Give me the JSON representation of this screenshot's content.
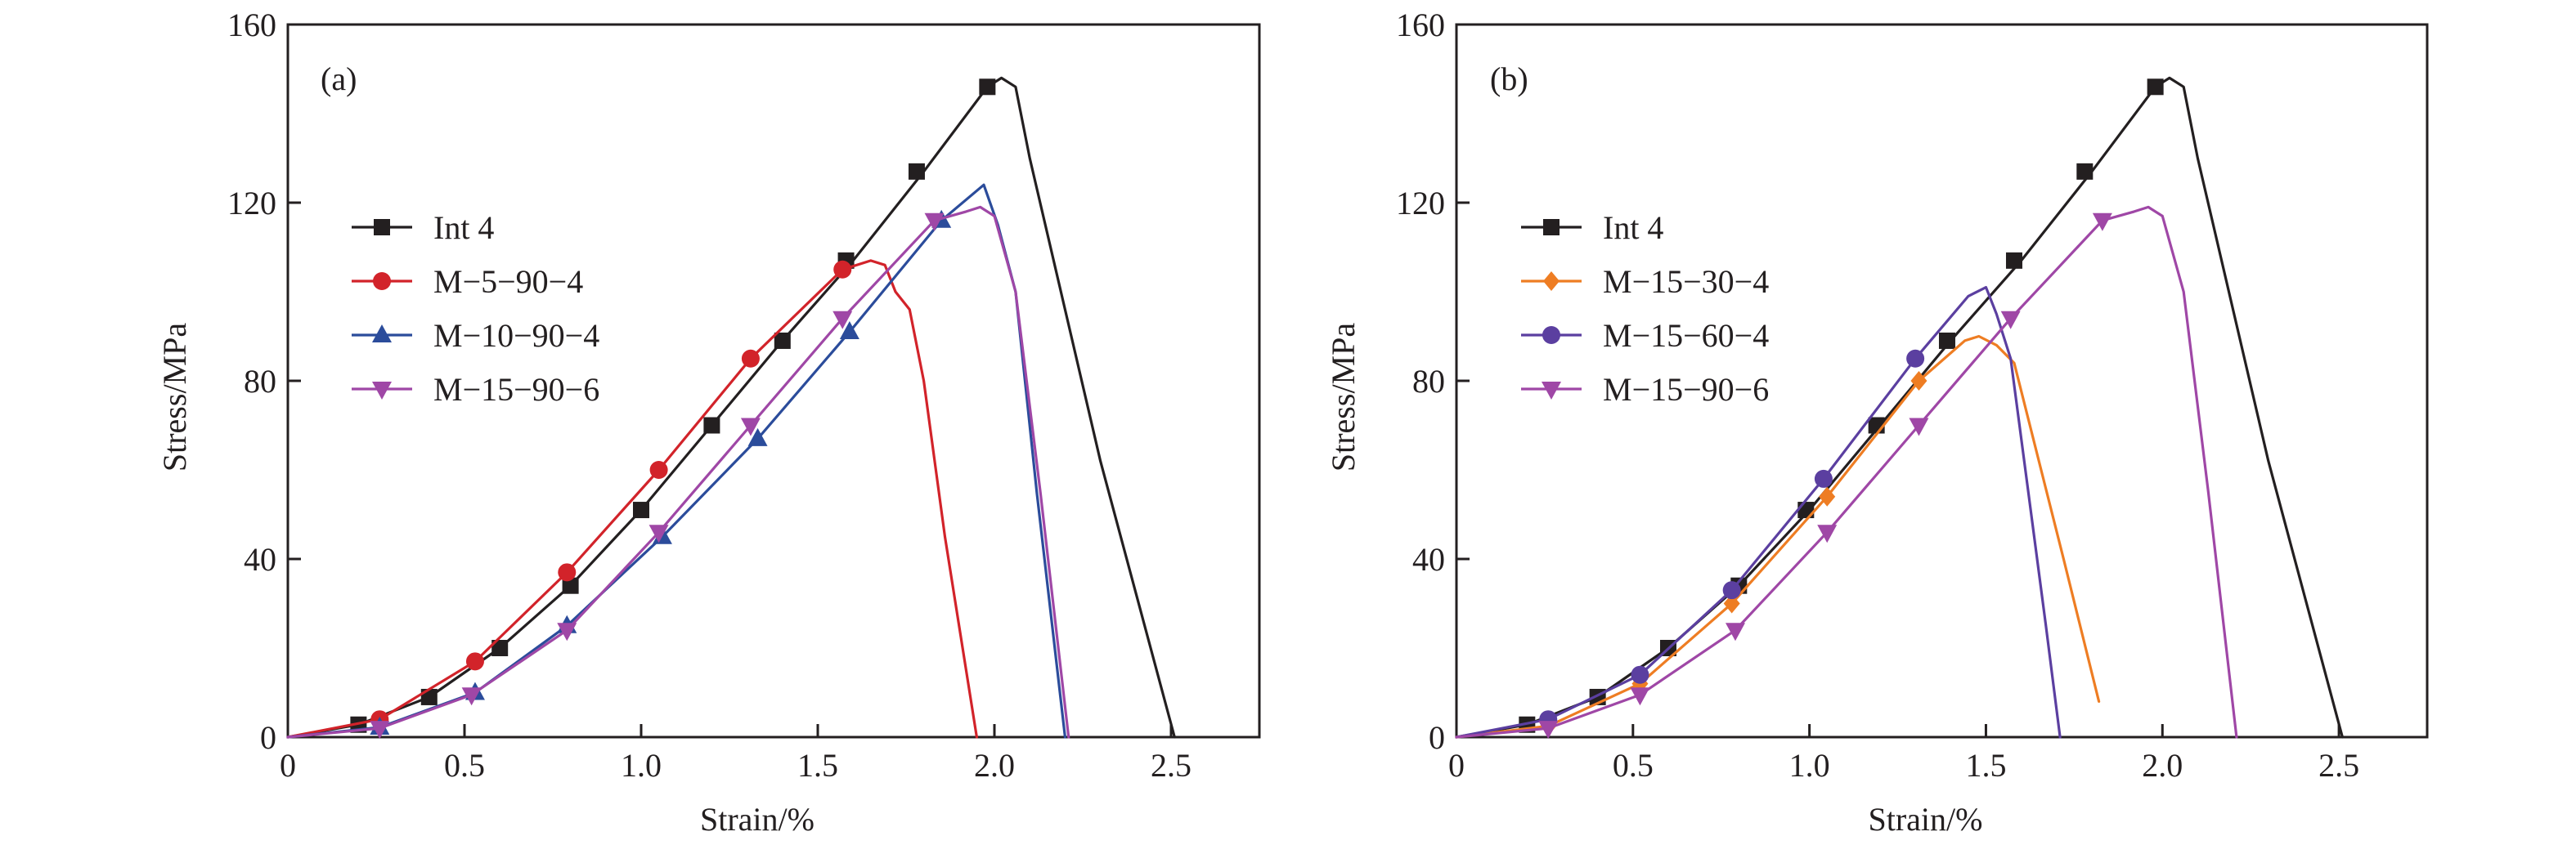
{
  "chart_data": [
    {
      "type": "line",
      "panel_label": "(a)",
      "xlabel": "Strain/%",
      "ylabel": "Stress/MPa",
      "xlim": [
        0,
        2.75
      ],
      "ylim": [
        0,
        160
      ],
      "xticks": [
        0,
        0.5,
        1.0,
        1.5,
        2.0,
        2.5
      ],
      "xtick_labels": [
        "0",
        "0.5",
        "1.0",
        "1.5",
        "2.0",
        "2.5"
      ],
      "yticks": [
        0,
        40,
        80,
        120,
        160
      ],
      "ytick_labels": [
        "0",
        "40",
        "80",
        "120",
        "160"
      ],
      "grid": false,
      "legend_position": "center-left",
      "series": [
        {
          "name": "Int 4",
          "color": "#231f20",
          "marker": "square",
          "line": [
            [
              0,
              0
            ],
            [
              0.2,
              2.8
            ],
            [
              0.4,
              9
            ],
            [
              0.6,
              20
            ],
            [
              0.8,
              34
            ],
            [
              1.0,
              51
            ],
            [
              1.2,
              70
            ],
            [
              1.4,
              89
            ],
            [
              1.6,
              107
            ],
            [
              1.8,
              127
            ],
            [
              1.98,
              146
            ],
            [
              2.02,
              148
            ],
            [
              2.06,
              146
            ],
            [
              2.1,
              130
            ],
            [
              2.3,
              62
            ],
            [
              2.51,
              0
            ]
          ],
          "markers": [
            [
              0.2,
              2.8
            ],
            [
              0.4,
              9
            ],
            [
              0.6,
              20
            ],
            [
              0.8,
              34
            ],
            [
              1.0,
              51
            ],
            [
              1.2,
              70
            ],
            [
              1.4,
              89
            ],
            [
              1.58,
              107
            ],
            [
              1.78,
              127
            ],
            [
              1.98,
              146
            ]
          ]
        },
        {
          "name": "M−5−90−4",
          "color": "#d2232a",
          "marker": "circle",
          "line": [
            [
              0,
              0
            ],
            [
              0.26,
              4
            ],
            [
              0.53,
              17
            ],
            [
              0.79,
              37
            ],
            [
              1.05,
              60
            ],
            [
              1.31,
              85
            ],
            [
              1.57,
              105
            ],
            [
              1.65,
              107
            ],
            [
              1.69,
              106
            ],
            [
              1.72,
              100
            ],
            [
              1.76,
              96
            ],
            [
              1.8,
              80
            ],
            [
              1.86,
              45
            ],
            [
              1.95,
              0
            ]
          ],
          "markers": [
            [
              0.26,
              4
            ],
            [
              0.53,
              17
            ],
            [
              0.79,
              37
            ],
            [
              1.05,
              60
            ],
            [
              1.31,
              85
            ],
            [
              1.57,
              105
            ]
          ]
        },
        {
          "name": "M−10−90−4",
          "color": "#2b4c9b",
          "marker": "triangle-up",
          "line": [
            [
              0,
              0
            ],
            [
              0.26,
              2.2
            ],
            [
              0.53,
              10
            ],
            [
              0.79,
              25
            ],
            [
              1.06,
              45
            ],
            [
              1.33,
              67
            ],
            [
              1.59,
              91
            ],
            [
              1.85,
              116
            ],
            [
              1.97,
              124
            ],
            [
              2.01,
              115
            ],
            [
              2.06,
              100
            ],
            [
              2.12,
              55
            ],
            [
              2.2,
              0
            ]
          ],
          "markers": [
            [
              0.26,
              2.2
            ],
            [
              0.53,
              10
            ],
            [
              0.79,
              25
            ],
            [
              1.06,
              45
            ],
            [
              1.33,
              67
            ],
            [
              1.59,
              91
            ],
            [
              1.85,
              116
            ]
          ]
        },
        {
          "name": "M−15−90−6",
          "color": "#9f47a6",
          "marker": "triangle-down",
          "line": [
            [
              0,
              0
            ],
            [
              0.26,
              2
            ],
            [
              0.52,
              9.5
            ],
            [
              0.79,
              24
            ],
            [
              1.05,
              46
            ],
            [
              1.31,
              70
            ],
            [
              1.57,
              94
            ],
            [
              1.83,
              116
            ],
            [
              1.92,
              118
            ],
            [
              1.96,
              119
            ],
            [
              2.0,
              117
            ],
            [
              2.06,
              100
            ],
            [
              2.13,
              55
            ],
            [
              2.21,
              0
            ]
          ],
          "markers": [
            [
              0.26,
              2
            ],
            [
              0.52,
              9.5
            ],
            [
              0.79,
              24
            ],
            [
              1.05,
              46
            ],
            [
              1.31,
              70
            ],
            [
              1.57,
              94
            ],
            [
              1.83,
              116
            ]
          ]
        }
      ]
    },
    {
      "type": "line",
      "panel_label": "(b)",
      "xlabel": "Strain/%",
      "ylabel": "Stress/MPa",
      "xlim": [
        0,
        2.75
      ],
      "ylim": [
        0,
        160
      ],
      "xticks": [
        0,
        0.5,
        1.0,
        1.5,
        2.0,
        2.5
      ],
      "xtick_labels": [
        "0",
        "0.5",
        "1.0",
        "1.5",
        "2.0",
        "2.5"
      ],
      "yticks": [
        0,
        40,
        80,
        120,
        160
      ],
      "ytick_labels": [
        "0",
        "40",
        "80",
        "120",
        "160"
      ],
      "grid": false,
      "legend_position": "center-left",
      "series": [
        {
          "name": "Int 4",
          "color": "#231f20",
          "marker": "square",
          "line": [
            [
              0,
              0
            ],
            [
              0.2,
              2.8
            ],
            [
              0.4,
              9
            ],
            [
              0.6,
              20
            ],
            [
              0.8,
              34
            ],
            [
              1.0,
              51
            ],
            [
              1.2,
              70
            ],
            [
              1.4,
              89
            ],
            [
              1.6,
              107
            ],
            [
              1.8,
              127
            ],
            [
              1.98,
              146
            ],
            [
              2.02,
              148
            ],
            [
              2.06,
              146
            ],
            [
              2.1,
              130
            ],
            [
              2.3,
              62
            ],
            [
              2.51,
              0
            ]
          ],
          "markers": [
            [
              0.2,
              2.8
            ],
            [
              0.4,
              9
            ],
            [
              0.6,
              20
            ],
            [
              0.8,
              34
            ],
            [
              0.99,
              51
            ],
            [
              1.19,
              70
            ],
            [
              1.39,
              89
            ],
            [
              1.58,
              107
            ],
            [
              1.78,
              127
            ],
            [
              1.98,
              146
            ]
          ]
        },
        {
          "name": "M−15−30−4",
          "color": "#ee7d23",
          "marker": "diamond",
          "line": [
            [
              0,
              0
            ],
            [
              0.26,
              2.5
            ],
            [
              0.52,
              12
            ],
            [
              0.78,
              30
            ],
            [
              1.05,
              54
            ],
            [
              1.31,
              80
            ],
            [
              1.44,
              89
            ],
            [
              1.48,
              90
            ],
            [
              1.53,
              88
            ],
            [
              1.58,
              84
            ],
            [
              1.65,
              62
            ],
            [
              1.72,
              40
            ],
            [
              1.82,
              8
            ]
          ],
          "markers": [
            [
              0.26,
              2.5
            ],
            [
              0.52,
              12
            ],
            [
              0.78,
              30
            ],
            [
              1.05,
              54
            ],
            [
              1.31,
              80
            ]
          ]
        },
        {
          "name": "M−15−60−4",
          "color": "#5b3fa0",
          "marker": "circle",
          "line": [
            [
              0,
              0
            ],
            [
              0.26,
              4
            ],
            [
              0.52,
              14
            ],
            [
              0.78,
              33
            ],
            [
              1.04,
              58
            ],
            [
              1.3,
              85
            ],
            [
              1.45,
              99
            ],
            [
              1.5,
              101
            ],
            [
              1.53,
              95
            ],
            [
              1.57,
              85
            ],
            [
              1.62,
              55
            ],
            [
              1.67,
              25
            ],
            [
              1.71,
              0
            ]
          ],
          "markers": [
            [
              0.26,
              4
            ],
            [
              0.52,
              14
            ],
            [
              0.78,
              33
            ],
            [
              1.04,
              58
            ],
            [
              1.3,
              85
            ]
          ]
        },
        {
          "name": "M−15−90−6",
          "color": "#9f47a6",
          "marker": "triangle-down",
          "line": [
            [
              0,
              0
            ],
            [
              0.26,
              2
            ],
            [
              0.52,
              9.5
            ],
            [
              0.79,
              24
            ],
            [
              1.05,
              46
            ],
            [
              1.31,
              70
            ],
            [
              1.57,
              94
            ],
            [
              1.7,
              105
            ],
            [
              1.83,
              116
            ],
            [
              1.92,
              118
            ],
            [
              1.96,
              119
            ],
            [
              2.0,
              117
            ],
            [
              2.06,
              100
            ],
            [
              2.13,
              55
            ],
            [
              2.21,
              0
            ]
          ],
          "markers": [
            [
              0.26,
              2
            ],
            [
              0.52,
              9.5
            ],
            [
              0.79,
              24
            ],
            [
              1.05,
              46
            ],
            [
              1.31,
              70
            ],
            [
              1.57,
              94
            ],
            [
              1.83,
              116
            ]
          ]
        }
      ]
    }
  ]
}
